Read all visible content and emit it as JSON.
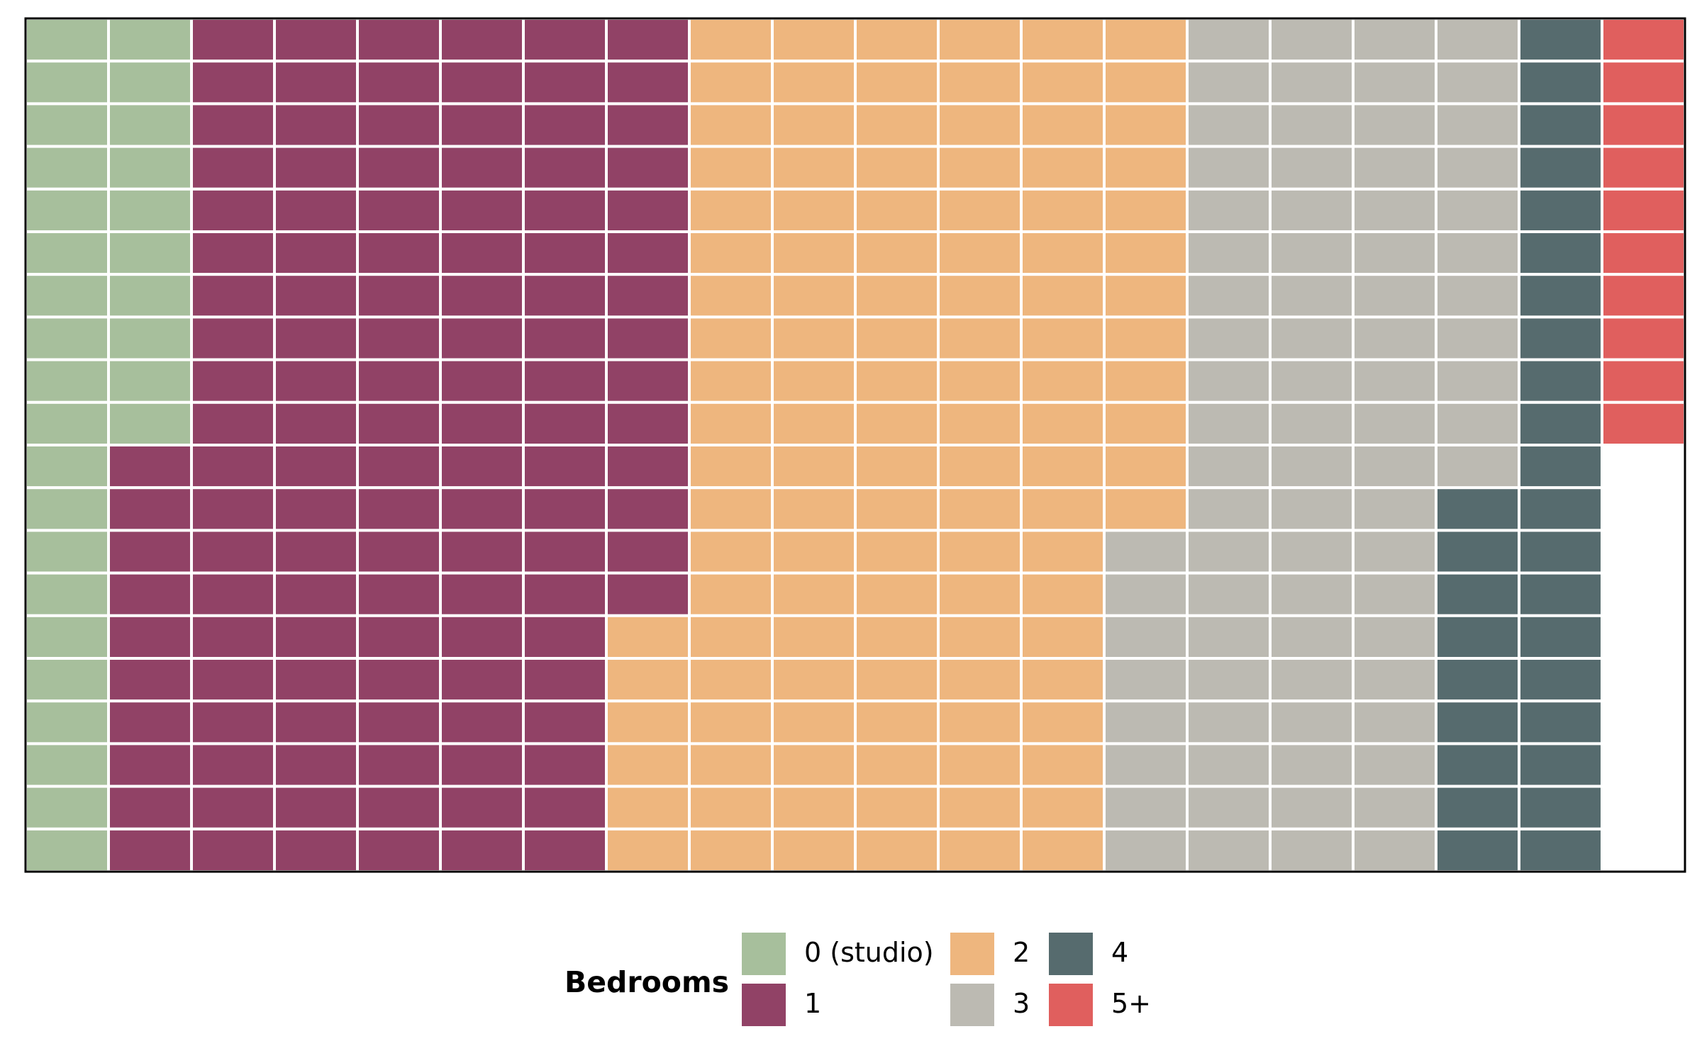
{
  "chart_data": {
    "type": "waffle",
    "grid": {
      "rows": 20,
      "columns": 20,
      "fill_order": "column-major, top-to-bottom, left-to-right"
    },
    "unit": "percent",
    "categories": [
      {
        "label": "0 (studio)",
        "value": 30,
        "color": "#a7bf9c"
      },
      {
        "label": "1",
        "value": 124,
        "color": "#914266"
      },
      {
        "label": "2",
        "value": 118,
        "color": "#eeb67e"
      },
      {
        "label": "3",
        "value": 79,
        "color": "#bcbab2"
      },
      {
        "label": "4",
        "value": 29,
        "color": "#566b6e"
      },
      {
        "label": "5+",
        "value": 10,
        "color": "#e05f5e"
      }
    ],
    "total_cells": 390,
    "cell_gap_color": "#ffffff",
    "border_color": "#000000"
  },
  "legend": {
    "title": "Bedrooms",
    "placement": "bottom-center"
  }
}
